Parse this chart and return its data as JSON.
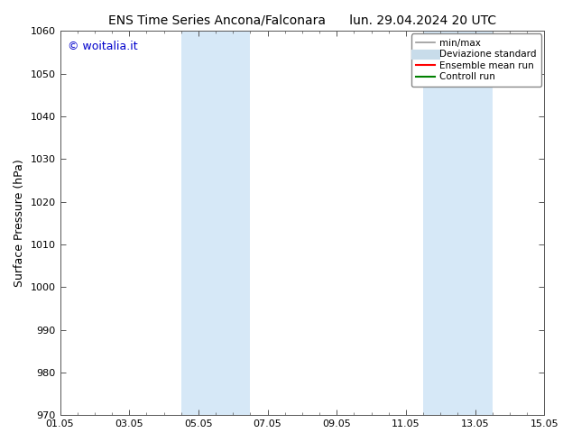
{
  "title_left": "ENS Time Series Ancona/Falconara",
  "title_right": "lun. 29.04.2024 20 UTC",
  "ylabel": "Surface Pressure (hPa)",
  "ylim": [
    970,
    1060
  ],
  "yticks": [
    970,
    980,
    990,
    1000,
    1010,
    1020,
    1030,
    1040,
    1050,
    1060
  ],
  "xlim": [
    0,
    14
  ],
  "xtick_labels": [
    "01.05",
    "03.05",
    "05.05",
    "07.05",
    "09.05",
    "11.05",
    "13.05",
    "15.05"
  ],
  "xtick_positions": [
    0,
    2,
    4,
    6,
    8,
    10,
    12,
    14
  ],
  "shade_bands": [
    {
      "x_start": 3.5,
      "x_end": 5.5
    },
    {
      "x_start": 10.5,
      "x_end": 12.5
    }
  ],
  "shade_color": "#d6e8f7",
  "watermark_text": "© woitalia.it",
  "watermark_color": "#0000cc",
  "legend_entries": [
    {
      "label": "min/max",
      "color": "#999999",
      "lw": 1.2,
      "linestyle": "-"
    },
    {
      "label": "Deviazione standard",
      "color": "#c8dcea",
      "lw": 8,
      "linestyle": "-"
    },
    {
      "label": "Ensemble mean run",
      "color": "#ff0000",
      "lw": 1.5,
      "linestyle": "-"
    },
    {
      "label": "Controll run",
      "color": "#008000",
      "lw": 1.5,
      "linestyle": "-"
    }
  ],
  "bg_color": "#ffffff",
  "title_fontsize": 10,
  "ylabel_fontsize": 9,
  "tick_fontsize": 8,
  "legend_fontsize": 7.5,
  "watermark_fontsize": 9
}
